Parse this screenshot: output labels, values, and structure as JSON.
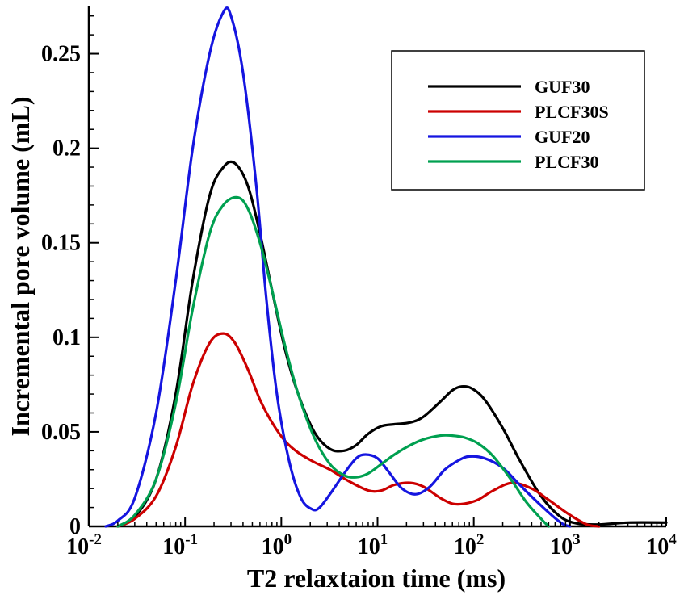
{
  "chart_data": {
    "type": "line",
    "xlabel": "T2 relaxtaion time (ms)",
    "ylabel": "Incremental pore volume (mL)",
    "x_scale": "log",
    "xlim": [
      0.01,
      10000
    ],
    "ylim": [
      0,
      0.275
    ],
    "x_ticks": [
      {
        "value": 0.01,
        "base": "10",
        "exp": "-2"
      },
      {
        "value": 0.1,
        "base": "10",
        "exp": "-1"
      },
      {
        "value": 1,
        "base": "10",
        "exp": "0"
      },
      {
        "value": 10,
        "base": "10",
        "exp": "1"
      },
      {
        "value": 100,
        "base": "10",
        "exp": "2"
      },
      {
        "value": 1000,
        "base": "10",
        "exp": "3"
      },
      {
        "value": 10000,
        "base": "10",
        "exp": "4"
      }
    ],
    "y_ticks": [
      {
        "value": 0,
        "label": "0"
      },
      {
        "value": 0.05,
        "label": "0.05"
      },
      {
        "value": 0.1,
        "label": "0.1"
      },
      {
        "value": 0.15,
        "label": "0.15"
      },
      {
        "value": 0.2,
        "label": "0.2"
      },
      {
        "value": 0.25,
        "label": "0.25"
      }
    ],
    "grid": false,
    "legend_position": "top-right",
    "series": [
      {
        "name": "GUF30",
        "color": "#000000",
        "x": [
          0.02,
          0.03,
          0.05,
          0.08,
          0.12,
          0.18,
          0.25,
          0.33,
          0.45,
          0.6,
          0.8,
          1.1,
          1.5,
          2.2,
          3.2,
          4.5,
          6,
          8,
          11,
          15,
          22,
          30,
          45,
          60,
          75,
          95,
          130,
          200,
          300,
          500,
          800,
          1200,
          2000,
          4000,
          10000
        ],
        "y": [
          0.0,
          0.005,
          0.025,
          0.07,
          0.13,
          0.175,
          0.19,
          0.192,
          0.18,
          0.155,
          0.125,
          0.093,
          0.07,
          0.05,
          0.041,
          0.04,
          0.043,
          0.049,
          0.053,
          0.054,
          0.055,
          0.058,
          0.066,
          0.072,
          0.074,
          0.073,
          0.067,
          0.052,
          0.035,
          0.016,
          0.005,
          0.0015,
          0.001,
          0.002,
          0.002
        ]
      },
      {
        "name": "PLCF30S",
        "color": "#cc0000",
        "x": [
          0.02,
          0.03,
          0.05,
          0.08,
          0.12,
          0.18,
          0.25,
          0.33,
          0.45,
          0.6,
          0.8,
          1.1,
          1.5,
          2.2,
          3.2,
          5,
          8,
          11,
          15,
          22,
          30,
          45,
          60,
          80,
          110,
          160,
          250,
          400,
          600,
          1000,
          1500,
          2000
        ],
        "y": [
          0.0,
          0.004,
          0.016,
          0.042,
          0.075,
          0.097,
          0.102,
          0.097,
          0.083,
          0.067,
          0.055,
          0.045,
          0.039,
          0.034,
          0.03,
          0.024,
          0.019,
          0.019,
          0.022,
          0.023,
          0.021,
          0.015,
          0.012,
          0.012,
          0.014,
          0.019,
          0.023,
          0.02,
          0.014,
          0.006,
          0.001,
          0.0
        ]
      },
      {
        "name": "GUF20",
        "color": "#1515e0",
        "x": [
          0.015,
          0.02,
          0.03,
          0.05,
          0.08,
          0.12,
          0.18,
          0.25,
          0.3,
          0.4,
          0.55,
          0.7,
          0.9,
          1.2,
          1.6,
          2.1,
          2.5,
          3.2,
          4.5,
          6,
          7.5,
          10,
          13,
          18,
          25,
          35,
          50,
          70,
          90,
          130,
          200,
          300,
          500,
          800,
          1000
        ],
        "y": [
          0.0,
          0.003,
          0.015,
          0.06,
          0.13,
          0.2,
          0.25,
          0.272,
          0.27,
          0.24,
          0.18,
          0.12,
          0.07,
          0.035,
          0.015,
          0.009,
          0.01,
          0.017,
          0.028,
          0.036,
          0.038,
          0.036,
          0.029,
          0.02,
          0.017,
          0.021,
          0.03,
          0.035,
          0.037,
          0.036,
          0.031,
          0.022,
          0.011,
          0.002,
          0.0
        ]
      },
      {
        "name": "PLCF30",
        "color": "#00a050",
        "x": [
          0.02,
          0.03,
          0.05,
          0.08,
          0.12,
          0.18,
          0.25,
          0.35,
          0.45,
          0.6,
          0.8,
          1.1,
          1.5,
          2.2,
          3.2,
          4.5,
          6,
          8,
          11,
          15,
          22,
          30,
          45,
          60,
          80,
          110,
          160,
          250,
          350,
          500,
          600
        ],
        "y": [
          0.0,
          0.006,
          0.025,
          0.065,
          0.115,
          0.155,
          0.17,
          0.174,
          0.168,
          0.15,
          0.125,
          0.095,
          0.07,
          0.047,
          0.033,
          0.027,
          0.026,
          0.028,
          0.033,
          0.038,
          0.043,
          0.046,
          0.048,
          0.048,
          0.047,
          0.044,
          0.037,
          0.024,
          0.013,
          0.004,
          0.0
        ]
      }
    ]
  }
}
